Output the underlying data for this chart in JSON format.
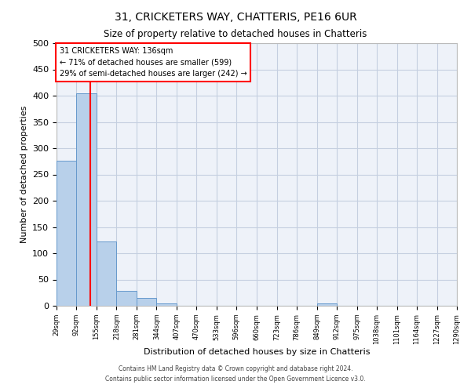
{
  "title": "31, CRICKETERS WAY, CHATTERIS, PE16 6UR",
  "subtitle": "Size of property relative to detached houses in Chatteris",
  "xlabel": "Distribution of detached houses by size in Chatteris",
  "ylabel": "Number of detached properties",
  "bar_edges": [
    29,
    92,
    155,
    218,
    281,
    344,
    407,
    470,
    533,
    596,
    660,
    723,
    786,
    849,
    912,
    975,
    1038,
    1101,
    1164,
    1227,
    1290
  ],
  "bar_heights": [
    276,
    405,
    122,
    29,
    15,
    5,
    0,
    0,
    0,
    0,
    0,
    0,
    0,
    5,
    0,
    0,
    0,
    0,
    0,
    0
  ],
  "bar_color": "#b8d0ea",
  "bar_edge_color": "#6699cc",
  "property_line_x": 136,
  "property_line_color": "red",
  "annotation_title": "31 CRICKETERS WAY: 136sqm",
  "annotation_line1": "← 71% of detached houses are smaller (599)",
  "annotation_line2": "29% of semi-detached houses are larger (242) →",
  "annotation_box_color": "white",
  "annotation_box_edge": "red",
  "ylim": [
    0,
    500
  ],
  "yticks": [
    0,
    50,
    100,
    150,
    200,
    250,
    300,
    350,
    400,
    450,
    500
  ],
  "tick_labels": [
    "29sqm",
    "92sqm",
    "155sqm",
    "218sqm",
    "281sqm",
    "344sqm",
    "407sqm",
    "470sqm",
    "533sqm",
    "596sqm",
    "660sqm",
    "723sqm",
    "786sqm",
    "849sqm",
    "912sqm",
    "975sqm",
    "1038sqm",
    "1101sqm",
    "1164sqm",
    "1227sqm",
    "1290sqm"
  ],
  "footer1": "Contains HM Land Registry data © Crown copyright and database right 2024.",
  "footer2": "Contains public sector information licensed under the Open Government Licence v3.0.",
  "background_color": "#eef2f9",
  "grid_color": "#c5cfe0"
}
